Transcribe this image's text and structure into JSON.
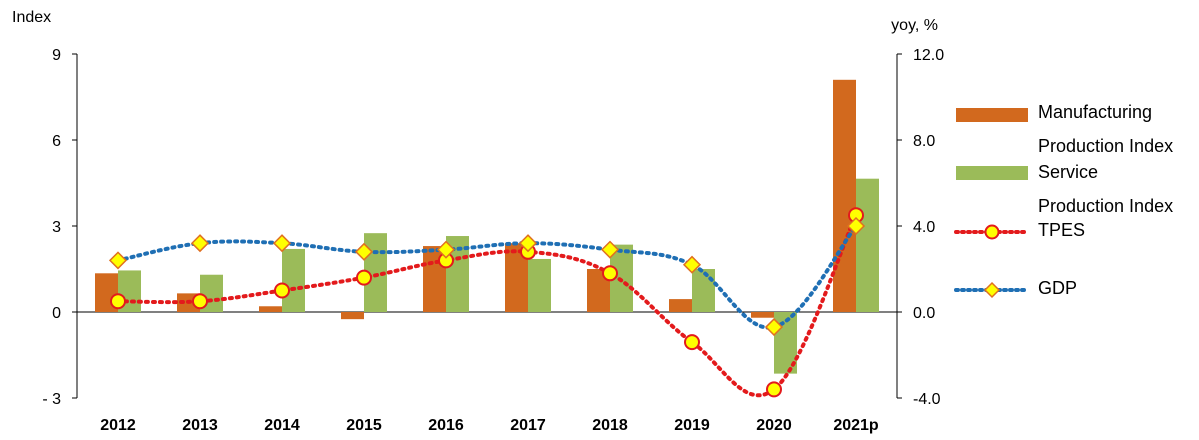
{
  "chart_data": {
    "type": "bar",
    "categories": [
      "2012",
      "2013",
      "2014",
      "2015",
      "2016",
      "2017",
      "2018",
      "2019",
      "2020",
      "2021p"
    ],
    "y_left": {
      "label": "Index",
      "range": [
        -3,
        9
      ],
      "ticks": [
        "- 3",
        "0",
        "3",
        "6",
        "9"
      ],
      "tick_values": [
        -3,
        0,
        3,
        6,
        9
      ]
    },
    "y_right": {
      "label": "yoy, %",
      "range": [
        -4.0,
        12.0
      ],
      "ticks": [
        "-4.0",
        "0.0",
        "4.0",
        "8.0",
        "12.0"
      ],
      "tick_values": [
        -4,
        0,
        4,
        8,
        12
      ]
    },
    "series": [
      {
        "name": "Manufacturing Production Index",
        "legend_lines": [
          "Manufacturing",
          "Production Index"
        ],
        "type": "bar",
        "axis": "left",
        "color": "#D2691E",
        "values": [
          1.35,
          0.65,
          0.2,
          -0.25,
          2.3,
          2.4,
          1.5,
          0.45,
          -0.2,
          8.1
        ]
      },
      {
        "name": "Service Production Index",
        "legend_lines": [
          "Service",
          "Production Index"
        ],
        "type": "bar",
        "axis": "left",
        "color": "#9BBB59",
        "values": [
          1.45,
          1.3,
          2.2,
          2.75,
          2.65,
          1.85,
          2.35,
          1.5,
          -2.15,
          4.65
        ]
      },
      {
        "name": "TPES",
        "legend_lines": [
          "TPES"
        ],
        "type": "line",
        "axis": "right",
        "color": "#E31A1C",
        "marker": "circle",
        "marker_fill": "#FFFF00",
        "values": [
          0.5,
          0.5,
          1.0,
          1.6,
          2.4,
          2.8,
          1.8,
          -1.4,
          -3.6,
          4.5
        ]
      },
      {
        "name": "GDP",
        "legend_lines": [
          "GDP"
        ],
        "type": "line",
        "axis": "right",
        "color": "#1F6FB4",
        "marker": "diamond",
        "marker_fill": "#FFFF00",
        "values": [
          2.4,
          3.2,
          3.2,
          2.8,
          2.9,
          3.2,
          2.9,
          2.2,
          -0.7,
          4.0
        ]
      }
    ]
  }
}
